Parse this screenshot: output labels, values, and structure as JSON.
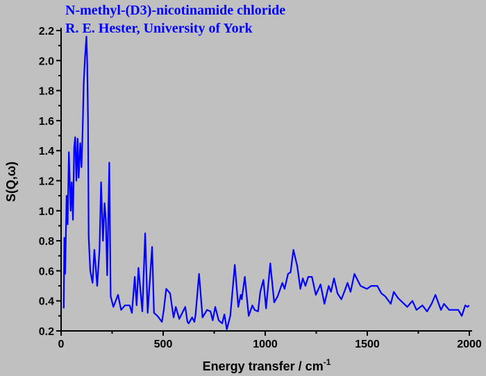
{
  "chart_data": {
    "type": "line",
    "title": "N-methyl-(D3)-nicotinamide chloride",
    "subtitle": "R. E. Hester, University of York",
    "xlabel": "Energy transfer / cm",
    "xlabel_sup": "-1",
    "ylabel": "S(Q,ω)",
    "xlim": [
      0,
      2000
    ],
    "ylim": [
      0.2,
      2.2
    ],
    "xticks": [
      0,
      500,
      1000,
      1500,
      2000
    ],
    "yticks": [
      0.2,
      0.4,
      0.6,
      0.8,
      1.0,
      1.2,
      1.4,
      1.6,
      1.8,
      2.0,
      2.2
    ],
    "ytick_labels": [
      "0.2",
      "0.4",
      "0.6",
      "0.8",
      "1.0",
      "1.2",
      "1.4",
      "1.6",
      "1.8",
      "2.0",
      "2.2"
    ],
    "grid": false,
    "line_color": "#0000ff",
    "series": [
      {
        "name": "S(Q,ω)",
        "x": [
          13,
          16,
          20,
          27,
          32,
          38,
          47,
          52,
          58,
          64,
          69,
          75,
          81,
          86,
          94,
          100,
          105,
          111,
          117,
          124,
          128,
          132,
          135,
          143,
          154,
          163,
          177,
          188,
          196,
          205,
          213,
          219,
          226,
          236,
          243,
          256,
          279,
          294,
          313,
          336,
          347,
          361,
          370,
          379,
          398,
          412,
          424,
          446,
          455,
          472,
          494,
          503,
          515,
          534,
          551,
          562,
          579,
          608,
          619,
          625,
          642,
          653,
          659,
          676,
          693,
          715,
          732,
          743,
          755,
          772,
          789,
          800,
          812,
          829,
          851,
          868,
          880,
          885,
          900,
          919,
          937,
          948,
          965,
          976,
          991,
          1004,
          1025,
          1044,
          1061,
          1084,
          1095,
          1112,
          1124,
          1138,
          1157,
          1172,
          1184,
          1197,
          1211,
          1229,
          1248,
          1271,
          1290,
          1311,
          1322,
          1337,
          1354,
          1373,
          1390,
          1403,
          1418,
          1437,
          1467,
          1498,
          1520,
          1549,
          1569,
          1588,
          1615,
          1630,
          1650,
          1696,
          1721,
          1741,
          1770,
          1793,
          1815,
          1834,
          1861,
          1876,
          1901,
          1923,
          1946,
          1963,
          1980,
          1991,
          1999
        ],
        "y": [
          0.35,
          0.82,
          0.58,
          1.1,
          0.91,
          1.39,
          1.0,
          1.19,
          0.94,
          1.42,
          1.49,
          1.2,
          1.48,
          1.22,
          1.45,
          1.29,
          1.51,
          1.85,
          2.02,
          2.16,
          1.99,
          1.6,
          0.83,
          0.6,
          0.52,
          0.74,
          0.5,
          0.74,
          1.19,
          0.8,
          1.05,
          0.94,
          0.57,
          1.32,
          0.43,
          0.36,
          0.44,
          0.34,
          0.37,
          0.37,
          0.32,
          0.56,
          0.37,
          0.62,
          0.33,
          0.85,
          0.32,
          0.76,
          0.32,
          0.3,
          0.26,
          0.34,
          0.48,
          0.45,
          0.29,
          0.36,
          0.28,
          0.36,
          0.26,
          0.25,
          0.29,
          0.26,
          0.31,
          0.58,
          0.29,
          0.34,
          0.33,
          0.27,
          0.36,
          0.27,
          0.25,
          0.31,
          0.21,
          0.3,
          0.64,
          0.36,
          0.44,
          0.41,
          0.56,
          0.3,
          0.37,
          0.34,
          0.33,
          0.46,
          0.54,
          0.35,
          0.65,
          0.39,
          0.43,
          0.52,
          0.48,
          0.58,
          0.59,
          0.74,
          0.63,
          0.48,
          0.55,
          0.5,
          0.56,
          0.56,
          0.44,
          0.51,
          0.38,
          0.5,
          0.46,
          0.55,
          0.45,
          0.41,
          0.47,
          0.52,
          0.46,
          0.58,
          0.5,
          0.48,
          0.5,
          0.5,
          0.45,
          0.43,
          0.38,
          0.46,
          0.42,
          0.36,
          0.4,
          0.34,
          0.37,
          0.33,
          0.38,
          0.44,
          0.34,
          0.38,
          0.34,
          0.34,
          0.34,
          0.3,
          0.37,
          0.36,
          0.37
        ]
      }
    ]
  }
}
